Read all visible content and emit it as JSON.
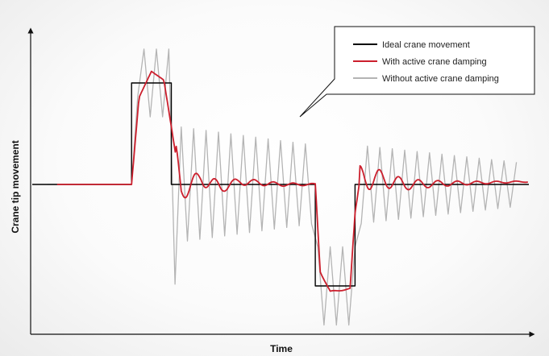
{
  "chart_data": {
    "type": "line",
    "xlabel": "Time",
    "ylabel": "Crane tip movement",
    "grid": false,
    "legend_position": "top-right",
    "y_scale": "relative (no ticks)",
    "series": [
      {
        "name": "Ideal crane movement",
        "color": "#000000",
        "points": [
          [
            0,
            0
          ],
          [
            0.2,
            0
          ],
          [
            0.2,
            0.35
          ],
          [
            0.28,
            0.35
          ],
          [
            0.28,
            0
          ],
          [
            0.57,
            0
          ],
          [
            0.57,
            -0.35
          ],
          [
            0.65,
            -0.35
          ],
          [
            0.65,
            0
          ],
          [
            1.0,
            0
          ]
        ]
      },
      {
        "name": "With active crane damping",
        "color": "#cc1f2d",
        "points": [
          [
            0.05,
            0
          ],
          [
            0.2,
            0
          ],
          [
            0.215,
            0.3
          ],
          [
            0.24,
            0.39
          ],
          [
            0.265,
            0.36
          ],
          [
            0.28,
            0.2
          ],
          [
            0.3,
            -0.02
          ],
          [
            0.34,
            0.02
          ],
          [
            0.38,
            -0.01
          ],
          [
            0.42,
            0.01
          ],
          [
            0.5,
            0
          ],
          [
            0.57,
            0
          ],
          [
            0.58,
            -0.3
          ],
          [
            0.6,
            -0.37
          ],
          [
            0.64,
            -0.36
          ],
          [
            0.65,
            -0.1
          ],
          [
            0.66,
            0.02
          ],
          [
            0.7,
            0.02
          ],
          [
            0.75,
            0
          ],
          [
            1.0,
            0.01
          ]
        ]
      },
      {
        "name": "Without active crane damping",
        "color": "#b4b4b4",
        "peak_envelope": [
          [
            0.2,
            0
          ],
          [
            0.22,
            0.48
          ],
          [
            0.28,
            0.48
          ],
          [
            0.3,
            0.22
          ],
          [
            0.57,
            0.15
          ],
          [
            0.57,
            -0.5
          ],
          [
            0.65,
            -0.5
          ],
          [
            0.66,
            0.15
          ],
          [
            1.0,
            0.08
          ]
        ]
      }
    ]
  },
  "legend": {
    "ideal": "Ideal crane movement",
    "damped": "With active crane damping",
    "undamped": "Without active crane damping"
  },
  "axes": {
    "xlabel": "Time",
    "ylabel": "Crane tip movement"
  }
}
